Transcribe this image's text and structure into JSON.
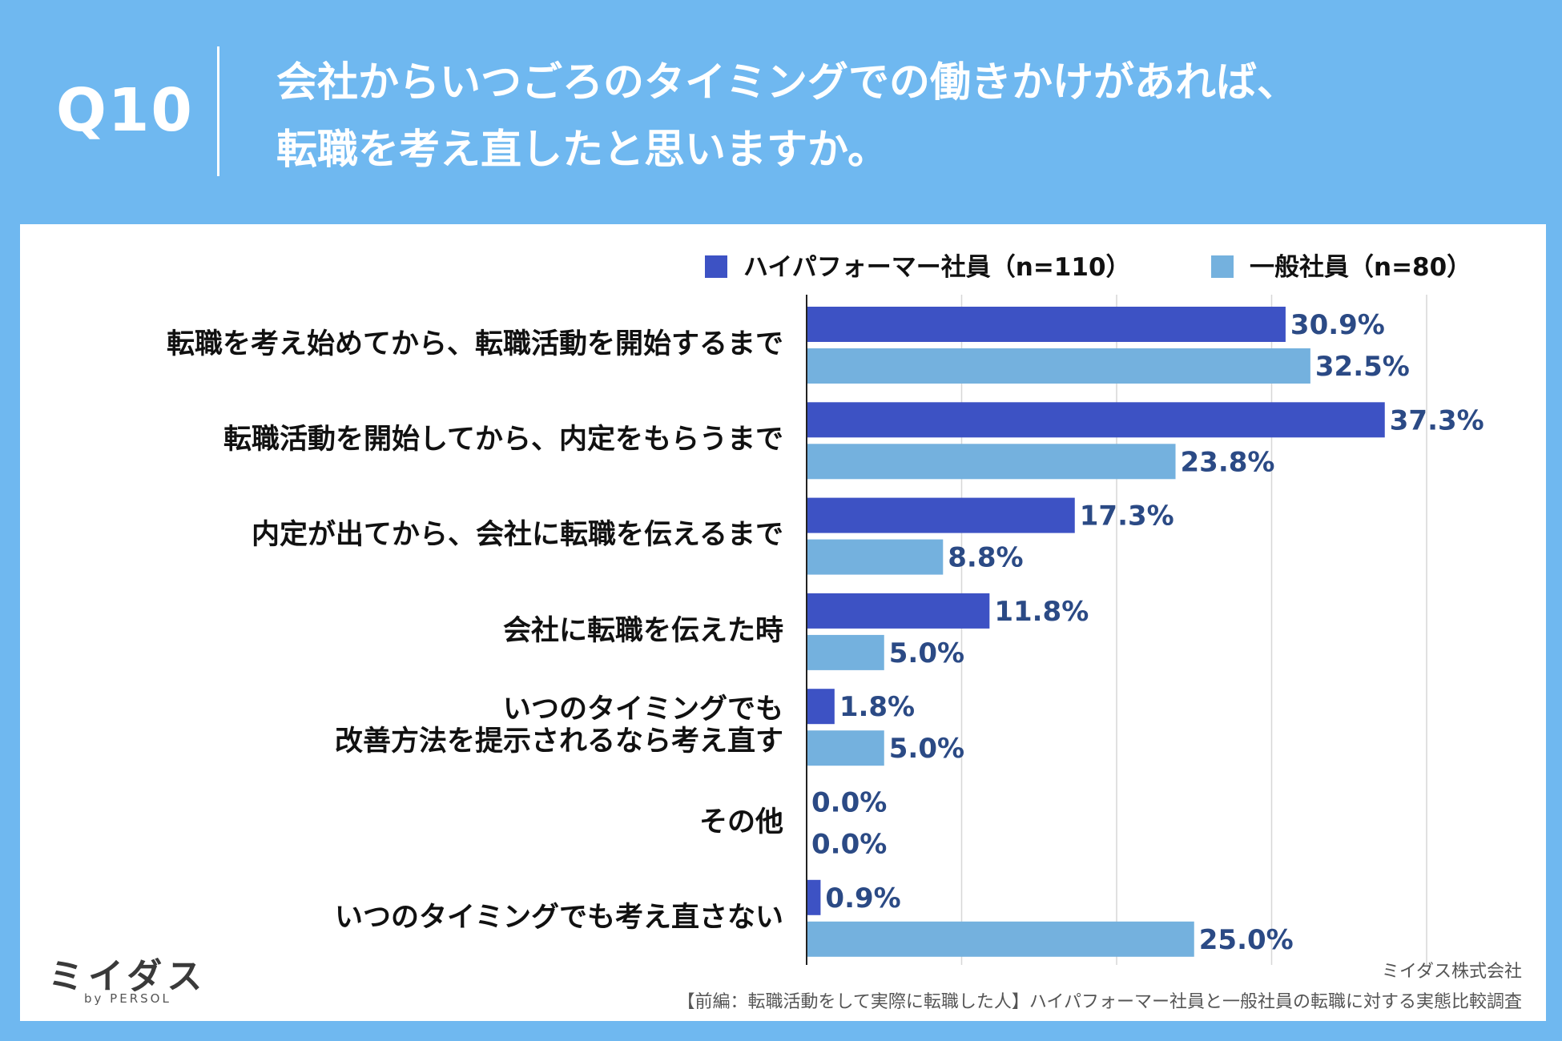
{
  "header": {
    "question": "Q10",
    "title_line1": "会社からいつごろのタイミングでの働きかけがあれば、",
    "title_line2": "転職を考え直したと思いますか。"
  },
  "colors": {
    "background": "#6fb8f0",
    "high_performer": "#3d52c4",
    "general": "#74b1de",
    "value_label": "#2b4a85"
  },
  "chart_data": {
    "type": "bar",
    "orientation": "horizontal",
    "categories": [
      "転職を考え始めてから、転職活動を開始するまで",
      "転職活動を開始してから、内定をもらうまで",
      "内定が出てから、会社に転職を伝えるまで",
      "会社に転職を伝えた時",
      "いつのタイミングでも\n改善方法を提示されるなら考え直す",
      "その他",
      "いつのタイミングでも考え直さない"
    ],
    "series": [
      {
        "name": "ハイパフォーマー社員（n=110）",
        "values": [
          30.9,
          37.3,
          17.3,
          11.8,
          1.8,
          0.0,
          0.9
        ],
        "color": "#3d52c4"
      },
      {
        "name": "一般社員（n=80）",
        "values": [
          32.5,
          23.8,
          8.8,
          5.0,
          5.0,
          0.0,
          25.0
        ],
        "color": "#74b1de"
      }
    ],
    "value_labels": [
      [
        "30.9%",
        "37.3%",
        "17.3%",
        "11.8%",
        "1.8%",
        "0.0%",
        "0.9%"
      ],
      [
        "32.5%",
        "23.8%",
        "8.8%",
        "5.0%",
        "5.0%",
        "0.0%",
        "25.0%"
      ]
    ],
    "xlim": [
      0,
      40
    ],
    "grid": true,
    "legend_position": "top-right"
  },
  "footer": {
    "logo": "ミイダス",
    "logo_by": "by PERSOL",
    "company": "ミイダス株式会社",
    "source": "【前編：転職活動をして実際に転職した人】ハイパフォーマー社員と一般社員の転職に対する実態比較調査"
  }
}
